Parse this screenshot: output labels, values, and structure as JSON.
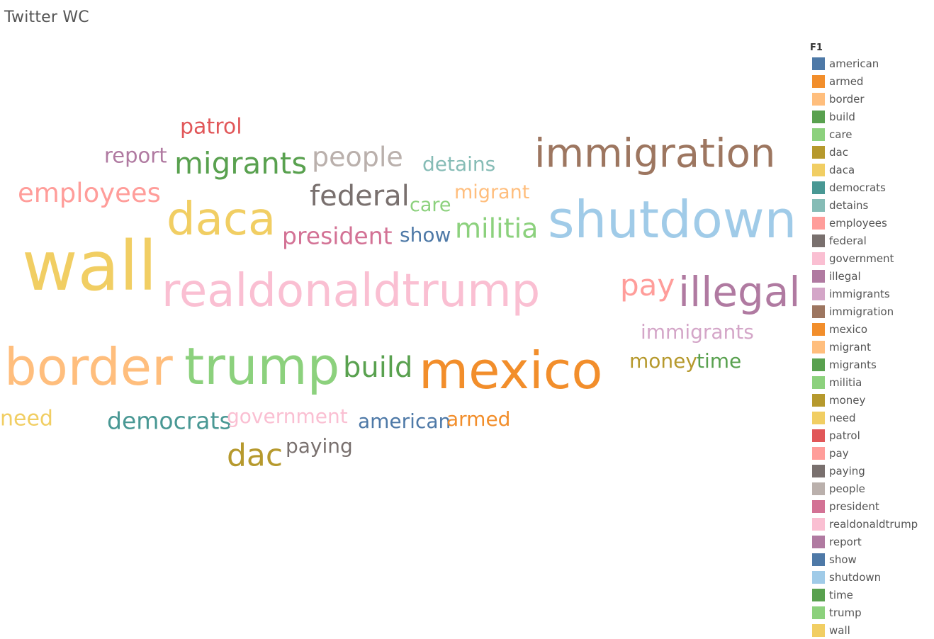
{
  "title": "Twitter WC",
  "legend": {
    "title": "F1"
  },
  "chart_data": {
    "type": "wordcloud",
    "title": "Twitter WC",
    "color_field": "F1",
    "legend_placement": "right",
    "words": [
      {
        "text": "american",
        "color": "#4e79a7",
        "size": 5
      },
      {
        "text": "armed",
        "color": "#f28e2b",
        "size": 5
      },
      {
        "text": "border",
        "color": "#ffbe7d",
        "size": 10
      },
      {
        "text": "build",
        "color": "#59a14f",
        "size": 6
      },
      {
        "text": "care",
        "color": "#8cd17d",
        "size": 4
      },
      {
        "text": "dac",
        "color": "#b6992d",
        "size": 6
      },
      {
        "text": "daca",
        "color": "#f1ce63",
        "size": 9
      },
      {
        "text": "democrats",
        "color": "#499894",
        "size": 5
      },
      {
        "text": "detains",
        "color": "#86bcb6",
        "size": 4
      },
      {
        "text": "employees",
        "color": "#ff9d9a",
        "size": 6
      },
      {
        "text": "federal",
        "color": "#79706e",
        "size": 6
      },
      {
        "text": "government",
        "color": "#fabfd2",
        "size": 4
      },
      {
        "text": "illegal",
        "color": "#b07aa1",
        "size": 8
      },
      {
        "text": "immigrants",
        "color": "#d4a6c8",
        "size": 4
      },
      {
        "text": "immigration",
        "color": "#9d7660",
        "size": 8
      },
      {
        "text": "mexico",
        "color": "#f28e2b",
        "size": 10
      },
      {
        "text": "migrant",
        "color": "#ffbe7d",
        "size": 4
      },
      {
        "text": "migrants",
        "color": "#59a14f",
        "size": 6
      },
      {
        "text": "militia",
        "color": "#8cd17d",
        "size": 6
      },
      {
        "text": "money",
        "color": "#b6992d",
        "size": 4
      },
      {
        "text": "need",
        "color": "#f1ce63",
        "size": 4
      },
      {
        "text": "patrol",
        "color": "#e15759",
        "size": 4
      },
      {
        "text": "pay",
        "color": "#ff9d9a",
        "size": 6
      },
      {
        "text": "paying",
        "color": "#79706e",
        "size": 4
      },
      {
        "text": "people",
        "color": "#bab0ac",
        "size": 5
      },
      {
        "text": "president",
        "color": "#d37295",
        "size": 5
      },
      {
        "text": "realdonaldtrump",
        "color": "#fabfd2",
        "size": 10
      },
      {
        "text": "report",
        "color": "#b07aa1",
        "size": 4
      },
      {
        "text": "show",
        "color": "#4e79a7",
        "size": 4
      },
      {
        "text": "shutdown",
        "color": "#a0cbe8",
        "size": 10
      },
      {
        "text": "time",
        "color": "#59a14f",
        "size": 4
      },
      {
        "text": "trump",
        "color": "#8cd17d",
        "size": 10
      },
      {
        "text": "wall",
        "color": "#f1ce63",
        "size": 13
      }
    ]
  }
}
